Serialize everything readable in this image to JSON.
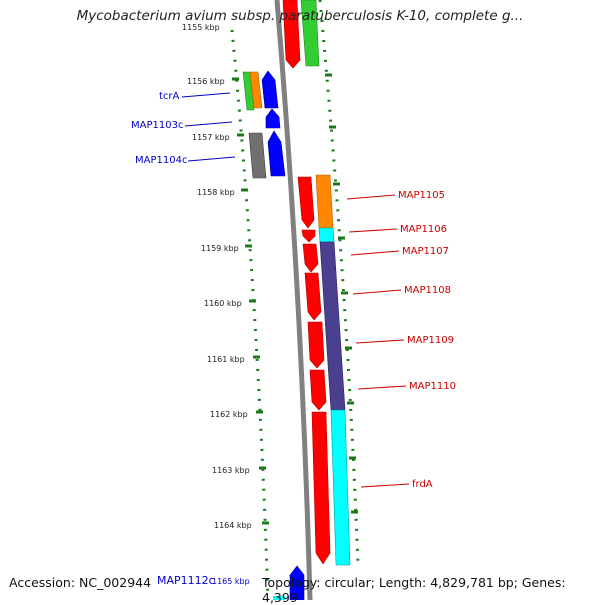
{
  "title": "Mycobacterium avium subsp. paratuberculosis K-10, complete g...",
  "footer": {
    "accession": "Accession: NC_002944",
    "topology": "Topology: circular; Length: 4,829,781 bp; Genes: 4,399",
    "edge_label": "MAP1112c",
    "edge_tick": "1165 kbp"
  },
  "ticks": [
    "1155 kbp",
    "1156 kbp",
    "1157 kbp",
    "1158 kbp",
    "1159 kbp",
    "1160 kbp",
    "1161 kbp",
    "1162 kbp",
    "1163 kbp",
    "1164 kbp"
  ],
  "labels": [
    {
      "text": "tcrA",
      "color": "#0000cc"
    },
    {
      "text": "MAP1103c",
      "color": "#0000cc"
    },
    {
      "text": "MAP1104c",
      "color": "#0000cc"
    },
    {
      "text": "MAP1105",
      "color": "#cc0000"
    },
    {
      "text": "MAP1106",
      "color": "#cc0000"
    },
    {
      "text": "MAP1107",
      "color": "#cc0000"
    },
    {
      "text": "MAP1108",
      "color": "#cc0000"
    },
    {
      "text": "MAP1109",
      "color": "#cc0000"
    },
    {
      "text": "MAP1110",
      "color": "#cc0000"
    },
    {
      "text": "frdA",
      "color": "#cc0000"
    }
  ],
  "colors": {
    "backbone": "#808080",
    "dots": "#1a7a1a",
    "red": "#ff0000",
    "green": "#33cc33",
    "orange": "#ff8800",
    "blue": "#0000ff",
    "gray": "#707070",
    "purple": "#4b3f8f",
    "cyan": "#00ffff"
  }
}
